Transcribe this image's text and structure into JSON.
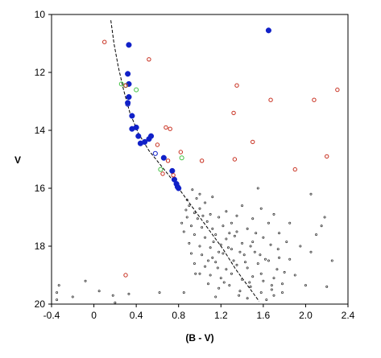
{
  "chart_data": {
    "type": "scatter",
    "title": "",
    "xlabel": "(B - V)",
    "ylabel": "V",
    "xlim": [
      -0.4,
      2.4
    ],
    "ylim": [
      10,
      20
    ],
    "y_inverted": true,
    "grid": false,
    "xticks": [
      "-0.4",
      "0",
      "0.4",
      "0.8",
      "1.2",
      "1.6",
      "2.0",
      "2.4"
    ],
    "yticks": [
      "10",
      "12",
      "14",
      "16",
      "18",
      "20"
    ],
    "colors": {
      "members_blue": "#1020c8",
      "open_green": "#40c040",
      "open_red": "#c83020",
      "field_dots": "#333333",
      "isochrone": "#000000"
    },
    "series": [
      {
        "style": "filled-blue",
        "points": [
          [
            0.33,
            11.05
          ],
          [
            0.32,
            12.05
          ],
          [
            0.33,
            12.4
          ],
          [
            0.33,
            12.85
          ],
          [
            0.32,
            13.05
          ],
          [
            0.36,
            13.5
          ],
          [
            0.36,
            13.95
          ],
          [
            0.4,
            13.9
          ],
          [
            0.42,
            14.2
          ],
          [
            0.44,
            14.45
          ],
          [
            0.48,
            14.4
          ],
          [
            0.52,
            14.3
          ],
          [
            0.54,
            14.2
          ],
          [
            0.66,
            14.95
          ],
          [
            0.74,
            15.4
          ],
          [
            0.76,
            15.7
          ],
          [
            0.78,
            15.85
          ],
          [
            0.79,
            15.95
          ],
          [
            0.8,
            16.0
          ],
          [
            1.65,
            10.55
          ]
        ]
      },
      {
        "style": "open-green",
        "points": [
          [
            0.26,
            12.4
          ],
          [
            0.3,
            12.45
          ],
          [
            0.4,
            12.6
          ],
          [
            0.83,
            14.95
          ],
          [
            0.63,
            15.35
          ]
        ]
      },
      {
        "style": "open-red",
        "points": [
          [
            0.1,
            10.95
          ],
          [
            0.52,
            11.55
          ],
          [
            0.3,
            12.45
          ],
          [
            1.35,
            12.45
          ],
          [
            1.67,
            12.95
          ],
          [
            2.08,
            12.95
          ],
          [
            2.3,
            12.6
          ],
          [
            1.32,
            13.4
          ],
          [
            0.68,
            13.9
          ],
          [
            0.72,
            13.95
          ],
          [
            0.6,
            14.5
          ],
          [
            1.5,
            14.4
          ],
          [
            0.82,
            14.75
          ],
          [
            0.7,
            15.05
          ],
          [
            1.02,
            15.05
          ],
          [
            1.33,
            15.0
          ],
          [
            2.2,
            14.9
          ],
          [
            0.65,
            15.5
          ],
          [
            0.75,
            15.55
          ],
          [
            1.9,
            15.35
          ],
          [
            0.3,
            19.0
          ]
        ]
      },
      {
        "style": "open-blue",
        "points": [
          [
            0.32,
            13.1
          ],
          [
            0.58,
            14.8
          ]
        ]
      }
    ],
    "field_points": [
      [
        -0.33,
        19.35
      ],
      [
        -0.35,
        19.6
      ],
      [
        -0.35,
        19.85
      ],
      [
        -0.2,
        19.75
      ],
      [
        -0.08,
        19.2
      ],
      [
        0.05,
        19.55
      ],
      [
        0.18,
        19.7
      ],
      [
        0.2,
        19.95
      ],
      [
        0.33,
        19.65
      ],
      [
        0.62,
        19.6
      ],
      [
        0.9,
        16.6
      ],
      [
        0.95,
        16.85
      ],
      [
        1.0,
        16.7
      ],
      [
        0.88,
        17.0
      ],
      [
        0.98,
        17.05
      ],
      [
        1.05,
        16.5
      ],
      [
        1.1,
        16.9
      ],
      [
        1.18,
        17.0
      ],
      [
        0.92,
        17.3
      ],
      [
        1.02,
        17.35
      ],
      [
        1.12,
        17.4
      ],
      [
        1.22,
        17.3
      ],
      [
        1.3,
        17.2
      ],
      [
        0.85,
        17.5
      ],
      [
        0.95,
        17.6
      ],
      [
        1.05,
        17.7
      ],
      [
        1.15,
        17.6
      ],
      [
        1.25,
        17.75
      ],
      [
        1.35,
        17.5
      ],
      [
        1.45,
        17.4
      ],
      [
        0.9,
        17.9
      ],
      [
        1.0,
        18.0
      ],
      [
        1.1,
        18.05
      ],
      [
        1.2,
        17.95
      ],
      [
        1.3,
        18.1
      ],
      [
        1.4,
        17.9
      ],
      [
        1.5,
        17.85
      ],
      [
        1.6,
        17.7
      ],
      [
        0.92,
        18.25
      ],
      [
        1.02,
        18.3
      ],
      [
        1.12,
        18.4
      ],
      [
        1.22,
        18.25
      ],
      [
        1.32,
        18.5
      ],
      [
        1.42,
        18.3
      ],
      [
        1.52,
        18.2
      ],
      [
        1.62,
        18.45
      ],
      [
        0.95,
        18.6
      ],
      [
        1.05,
        18.7
      ],
      [
        1.15,
        18.55
      ],
      [
        1.25,
        18.8
      ],
      [
        1.35,
        18.65
      ],
      [
        1.45,
        18.75
      ],
      [
        1.55,
        18.6
      ],
      [
        1.65,
        18.5
      ],
      [
        1.75,
        18.4
      ],
      [
        1.0,
        18.95
      ],
      [
        1.1,
        19.0
      ],
      [
        1.2,
        19.1
      ],
      [
        1.3,
        18.95
      ],
      [
        1.4,
        19.15
      ],
      [
        1.5,
        19.05
      ],
      [
        1.6,
        19.2
      ],
      [
        1.7,
        19.1
      ],
      [
        1.8,
        18.9
      ],
      [
        1.08,
        19.3
      ],
      [
        1.18,
        19.45
      ],
      [
        1.28,
        19.35
      ],
      [
        1.38,
        19.55
      ],
      [
        1.48,
        19.4
      ],
      [
        1.58,
        19.6
      ],
      [
        1.68,
        19.5
      ],
      [
        1.78,
        19.3
      ],
      [
        0.85,
        19.6
      ],
      [
        1.15,
        19.75
      ],
      [
        1.45,
        19.8
      ],
      [
        1.7,
        19.7
      ],
      [
        1.4,
        16.6
      ],
      [
        1.55,
        16.0
      ],
      [
        1.7,
        16.9
      ],
      [
        1.85,
        17.2
      ],
      [
        1.95,
        18.0
      ],
      [
        2.05,
        18.2
      ],
      [
        2.1,
        17.6
      ],
      [
        2.18,
        17.0
      ],
      [
        2.15,
        17.3
      ],
      [
        2.25,
        18.5
      ],
      [
        2.2,
        19.4
      ],
      [
        1.9,
        19.0
      ],
      [
        2.0,
        19.35
      ],
      [
        1.85,
        18.45
      ],
      [
        1.75,
        17.55
      ],
      [
        1.65,
        17.2
      ],
      [
        1.12,
        16.3
      ],
      [
        1.0,
        16.2
      ],
      [
        0.88,
        16.4
      ],
      [
        2.05,
        16.2
      ],
      [
        1.25,
        16.8
      ],
      [
        1.35,
        16.95
      ],
      [
        1.5,
        17.05
      ],
      [
        1.58,
        16.7
      ],
      [
        0.96,
        18.95
      ],
      [
        1.08,
        18.5
      ],
      [
        1.18,
        18.2
      ],
      [
        1.28,
        17.55
      ],
      [
        1.38,
        18.2
      ],
      [
        1.48,
        18.0
      ],
      [
        1.58,
        18.95
      ],
      [
        1.68,
        19.35
      ],
      [
        1.74,
        18.1
      ],
      [
        1.82,
        17.85
      ],
      [
        0.83,
        17.2
      ],
      [
        0.87,
        16.75
      ],
      [
        0.93,
        16.05
      ],
      [
        0.97,
        16.35
      ],
      [
        1.03,
        16.95
      ],
      [
        1.07,
        17.15
      ],
      [
        1.13,
        17.85
      ],
      [
        1.17,
        18.75
      ],
      [
        1.23,
        19.25
      ],
      [
        1.27,
        18.05
      ],
      [
        1.33,
        17.65
      ],
      [
        1.37,
        19.7
      ],
      [
        1.43,
        18.55
      ],
      [
        1.47,
        19.25
      ],
      [
        1.53,
        17.55
      ],
      [
        1.57,
        18.3
      ],
      [
        1.63,
        19.85
      ],
      [
        1.67,
        17.95
      ],
      [
        1.73,
        18.8
      ],
      [
        1.78,
        19.6
      ]
    ],
    "isochrone": [
      [
        0.16,
        10.2
      ],
      [
        0.19,
        11.0
      ],
      [
        0.23,
        11.8
      ],
      [
        0.28,
        12.6
      ],
      [
        0.34,
        13.4
      ],
      [
        0.42,
        14.1
      ],
      [
        0.52,
        14.7
      ],
      [
        0.63,
        15.2
      ],
      [
        0.74,
        15.7
      ],
      [
        0.86,
        16.3
      ],
      [
        0.98,
        16.9
      ],
      [
        1.1,
        17.5
      ],
      [
        1.22,
        18.1
      ],
      [
        1.34,
        18.8
      ],
      [
        1.46,
        19.4
      ],
      [
        1.56,
        19.9
      ]
    ]
  }
}
